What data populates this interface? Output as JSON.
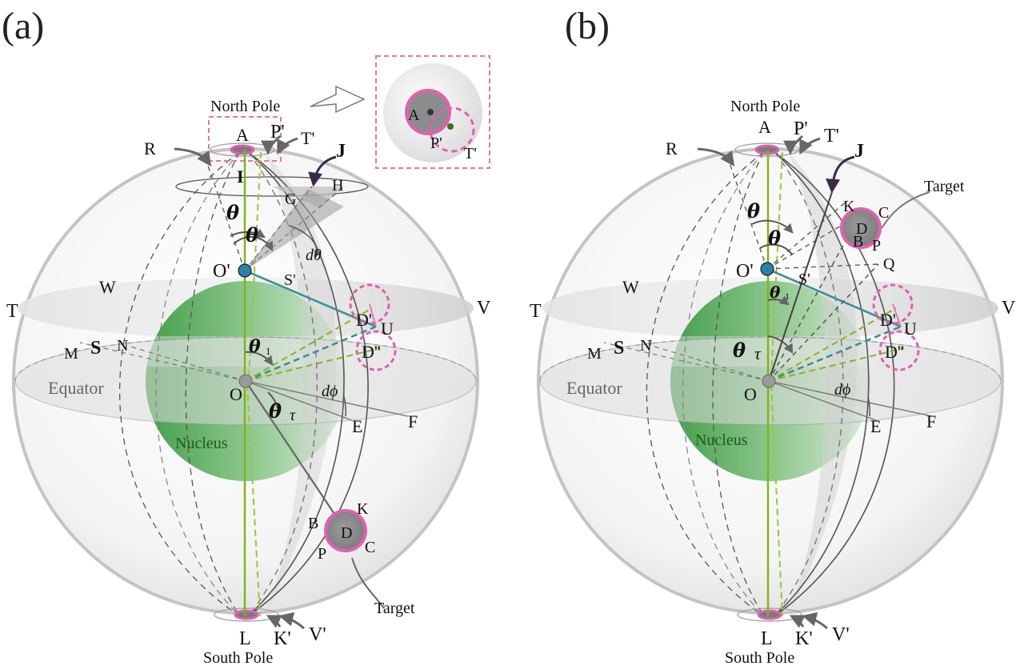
{
  "panel_a": {
    "tag": "(a)",
    "north_pole": "North Pole",
    "south_pole": "South Pole",
    "equator": "Equator",
    "nucleus": "Nucleus",
    "target": "Target",
    "points": {
      "A": "A",
      "P1": "P'",
      "T1": "T'",
      "R": "R",
      "J": "J",
      "I": "I",
      "G": "G",
      "H": "H",
      "O1": "O'",
      "S1": "S'",
      "W": "W",
      "T": "T",
      "V": "V",
      "M": "M",
      "S": "S",
      "N": "N",
      "O": "O",
      "E": "E",
      "F": "F",
      "U": "U",
      "D1": "D'",
      "D2": "D''",
      "B": "B",
      "K": "K",
      "D": "D",
      "C": "C",
      "P": "P",
      "L": "L",
      "K1": "K'",
      "V1": "V'"
    },
    "greek": {
      "theta_upper": "θ",
      "theta_lower": "θ",
      "dtheta": "dθ",
      "theta1": "θ",
      "theta1_sub": "1",
      "theta_tau": "θ",
      "theta_tau_sub": "τ",
      "dphi": "dϕ"
    },
    "inset": {
      "A": "A",
      "P1": "P'",
      "T1": "T'"
    }
  },
  "panel_b": {
    "tag": "(b)",
    "north_pole": "North Pole",
    "south_pole": "South Pole",
    "equator": "Equator",
    "nucleus": "Nucleus",
    "target": "Target",
    "points": {
      "A": "A",
      "P1": "P'",
      "T1": "T'",
      "R": "R",
      "J": "J",
      "K": "K",
      "C": "C",
      "D": "D",
      "B": "B",
      "P": "P",
      "Q": "Q",
      "O1": "O'",
      "S1": "S'",
      "W": "W",
      "T": "T",
      "V": "V",
      "M": "M",
      "S": "S",
      "N": "N",
      "O": "O",
      "E": "E",
      "F": "F",
      "U": "U",
      "D1": "D'",
      "D2": "D''",
      "L": "L",
      "K1": "K'",
      "V1": "V'"
    },
    "greek": {
      "theta": "θ",
      "theta_lower": "θ",
      "theta1": "θ",
      "theta1_sub": "1",
      "theta_tau": "θ",
      "theta_tau_sub": "τ",
      "dphi": "dϕ"
    }
  },
  "colors": {
    "sphere_stroke": "#bdbdbd",
    "nucleus_green": "#3f9f45",
    "pink": "#e060b0",
    "teal": "#3d8f97",
    "olive": "#8ab41e",
    "gray_line": "#666666"
  }
}
